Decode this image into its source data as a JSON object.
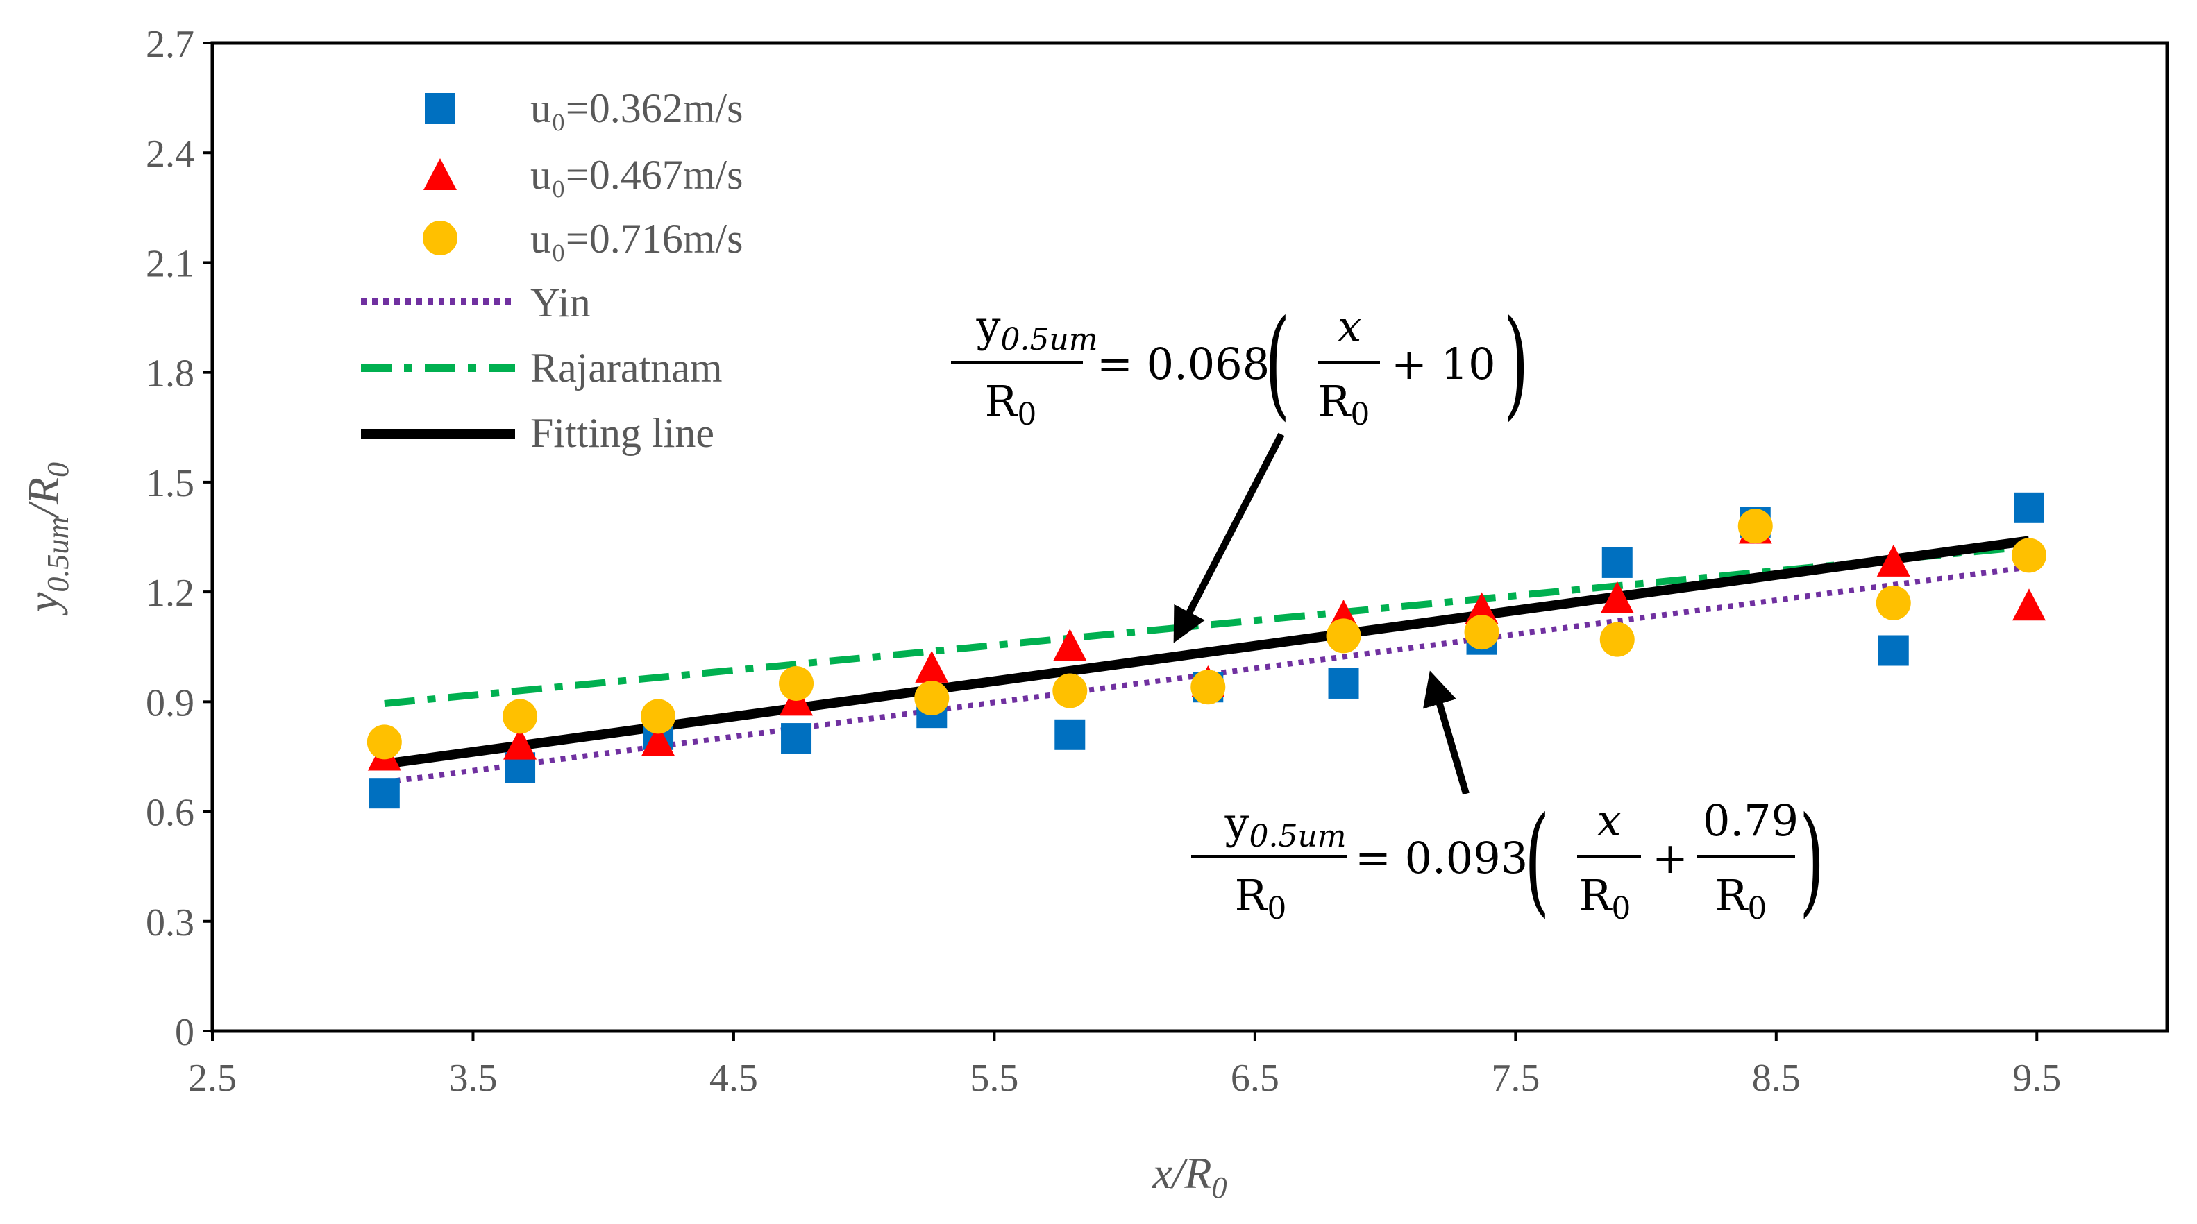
{
  "chart_data": {
    "type": "scatter",
    "title": "",
    "xlabel": "x/R",
    "xlabel_sub": "0",
    "ylabel": "y",
    "ylabel_sub": "0.5um",
    "ylabel_tail": "/R",
    "ylabel_tail_sub": "0",
    "xlim": [
      2.5,
      10.0
    ],
    "ylim": [
      0,
      2.7
    ],
    "xticks": [
      2.5,
      3.5,
      4.5,
      5.5,
      6.5,
      7.5,
      8.5,
      9.5
    ],
    "xtick_labels": [
      "2.5",
      "3.5",
      "4.5",
      "5.5",
      "6.5",
      "7.5",
      "8.5",
      "9.5"
    ],
    "yticks": [
      0,
      0.3,
      0.6,
      0.9,
      1.2,
      1.5,
      1.8,
      2.1,
      2.4,
      2.7
    ],
    "ytick_labels": [
      "0",
      "0.3",
      "0.6",
      "0.9",
      "1.2",
      "1.5",
      "1.8",
      "2.1",
      "2.4",
      "2.7"
    ],
    "grid": false,
    "legend_position": "top-left",
    "series": [
      {
        "name": "u₀=0.362m/s",
        "marker": "square",
        "color": "#0070C0",
        "x": [
          3.16,
          3.68,
          4.21,
          4.74,
          5.26,
          5.79,
          6.32,
          6.84,
          7.37,
          7.89,
          8.42,
          8.95,
          9.47
        ],
        "y": [
          0.65,
          0.72,
          0.81,
          0.8,
          0.87,
          0.81,
          0.94,
          0.95,
          1.07,
          1.28,
          1.39,
          1.04,
          1.43
        ]
      },
      {
        "name": "u₀=0.467m/s",
        "marker": "triangle",
        "color": "#FF0000",
        "x": [
          3.16,
          3.68,
          4.21,
          4.74,
          5.26,
          5.79,
          6.32,
          6.84,
          7.37,
          7.89,
          8.42,
          8.95,
          9.47
        ],
        "y": [
          0.75,
          0.78,
          0.79,
          0.9,
          0.99,
          1.05,
          0.95,
          1.13,
          1.15,
          1.18,
          1.37,
          1.28,
          1.16
        ]
      },
      {
        "name": "u₀=0.716m/s",
        "marker": "circle",
        "color": "#FFC000",
        "x": [
          3.16,
          3.68,
          4.21,
          4.74,
          5.26,
          5.79,
          6.32,
          6.84,
          7.37,
          7.89,
          8.42,
          8.95,
          9.47
        ],
        "y": [
          0.79,
          0.86,
          0.86,
          0.95,
          0.91,
          0.93,
          0.94,
          1.08,
          1.09,
          1.07,
          1.38,
          1.17,
          1.3
        ]
      }
    ],
    "lines": [
      {
        "name": "Yin",
        "style": "dotted",
        "color": "#7030A0",
        "x": [
          3.16,
          9.47
        ],
        "y": [
          0.68,
          1.268
        ]
      },
      {
        "name": "Rajaratnam",
        "style": "dashdot",
        "color": "#00B050",
        "x": [
          3.16,
          9.47
        ],
        "y": [
          0.895,
          1.324
        ]
      },
      {
        "name": "Fitting line",
        "style": "solid",
        "color": "#000000",
        "x": [
          3.16,
          9.47
        ],
        "y": [
          0.73,
          1.34
        ]
      }
    ],
    "annotations": [
      {
        "name": "rajaratnam-equation",
        "numerator": "y",
        "numerator_sub": "0.5um",
        "denominator": "R",
        "denominator_sub": "0",
        "coefficient": "= 0.068",
        "inner_numerator": "x",
        "inner_denominator": "R",
        "inner_denominator_sub": "0",
        "tail": "+ 10",
        "arrow_target": {
          "x": 6.2,
          "y": 1.1
        }
      },
      {
        "name": "yin-equation",
        "numerator": "y",
        "numerator_sub": "0.5um",
        "denominator": "R",
        "denominator_sub": "0",
        "coefficient": "= 0.093",
        "inner_numerator": "x",
        "inner_denominator": "R",
        "inner_denominator_sub": "0",
        "plus": "+",
        "inner2_numerator": "0.79",
        "inner2_denominator": "R",
        "inner2_denominator_sub": "0",
        "arrow_target": {
          "x": 7.2,
          "y": 1.02
        }
      }
    ]
  }
}
